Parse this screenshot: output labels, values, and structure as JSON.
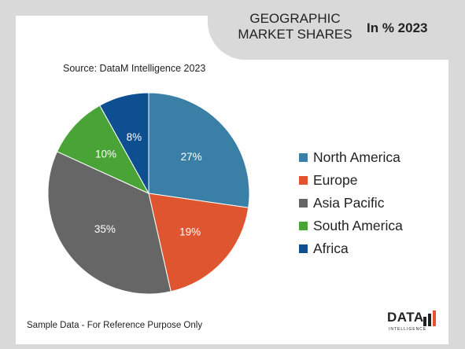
{
  "header": {
    "title": "GEOGRAPHIC MARKET SHARES",
    "year_label": "In % 2023"
  },
  "source": "Source: DataM Intelligence 2023",
  "footnote": "Sample Data - For Reference Purpose Only",
  "logo": {
    "text": "DATA",
    "subtext": "INTELLIGENCE",
    "bar_colors": [
      "#222222",
      "#e8502f"
    ]
  },
  "chart_data": {
    "type": "pie",
    "title": "GEOGRAPHIC MARKET SHARES",
    "subtitle": "In % 2023",
    "start_angle_deg": 0,
    "direction": "clockwise",
    "legend_position": "right",
    "slices": [
      {
        "label": "North America",
        "value": 27,
        "display": "27%",
        "color": "#3a7fa5"
      },
      {
        "label": "Europe",
        "value": 19,
        "display": "19%",
        "color": "#df5530"
      },
      {
        "label": "Asia Pacific",
        "value": 35,
        "display": "35%",
        "color": "#666666"
      },
      {
        "label": "South America",
        "value": 10,
        "display": "10%",
        "color": "#4aa336"
      },
      {
        "label": "Africa",
        "value": 8,
        "display": "8%",
        "color": "#0e4f92"
      }
    ]
  }
}
